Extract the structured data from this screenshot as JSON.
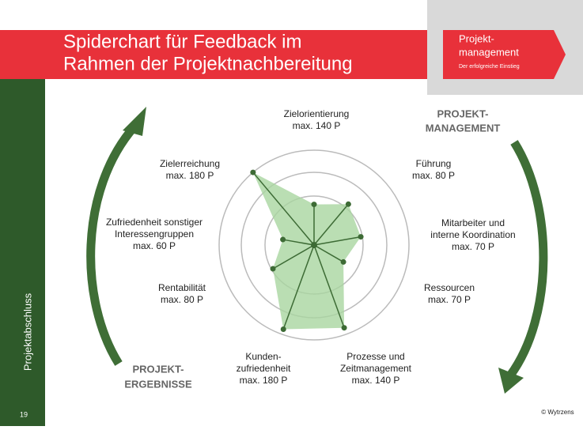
{
  "header": {
    "title": [
      "Spiderchart für Feedback im",
      "Rahmen der Projektnachbereitung"
    ],
    "logo": [
      "Projekt-",
      "management",
      "Der erfolgreiche Einstieg"
    ]
  },
  "sidebar": "Projektabschluss",
  "page_number": "19",
  "copyright": "© Wytrzens",
  "cycle_labels": [
    [
      "PROJEKT-",
      "MANAGEMENT"
    ],
    [
      "PROJEKT-",
      "ERGEBNISSE"
    ]
  ],
  "chart_data": {
    "type": "radar",
    "categories": [
      [
        "Zielorientierung"
      ],
      [
        "Führung"
      ],
      [
        "Mitarbeiter und",
        "interne Koordination"
      ],
      [
        "Ressourcen"
      ],
      [
        "Prozesse und",
        "Zeitmanagement"
      ],
      [
        "Kunden-",
        "zufriedenheit"
      ],
      [
        "Rentabilität"
      ],
      [
        "Zufriedenheit sonstiger",
        "Interessengruppen"
      ],
      [
        "Zielerreichung"
      ]
    ],
    "max": [
      {
        "value": 140,
        "label": "max. 140 P"
      },
      {
        "value": 80,
        "label": "max. 80 P"
      },
      {
        "value": 70,
        "label": "max. 70 P"
      },
      {
        "value": 70,
        "label": "max. 70 P"
      },
      {
        "value": 140,
        "label": "max. 140 P"
      },
      {
        "value": 180,
        "label": "max. 180 P"
      },
      {
        "value": 80,
        "label": "max. 80 P"
      },
      {
        "value": 60,
        "label": "max. 60 P"
      },
      {
        "value": 180,
        "label": "max. 180 P"
      }
    ],
    "values": [
      60,
      45,
      35,
      25,
      130,
      170,
      40,
      20,
      180
    ],
    "color": "#3d6b35",
    "fill": "#a9d6a0"
  }
}
